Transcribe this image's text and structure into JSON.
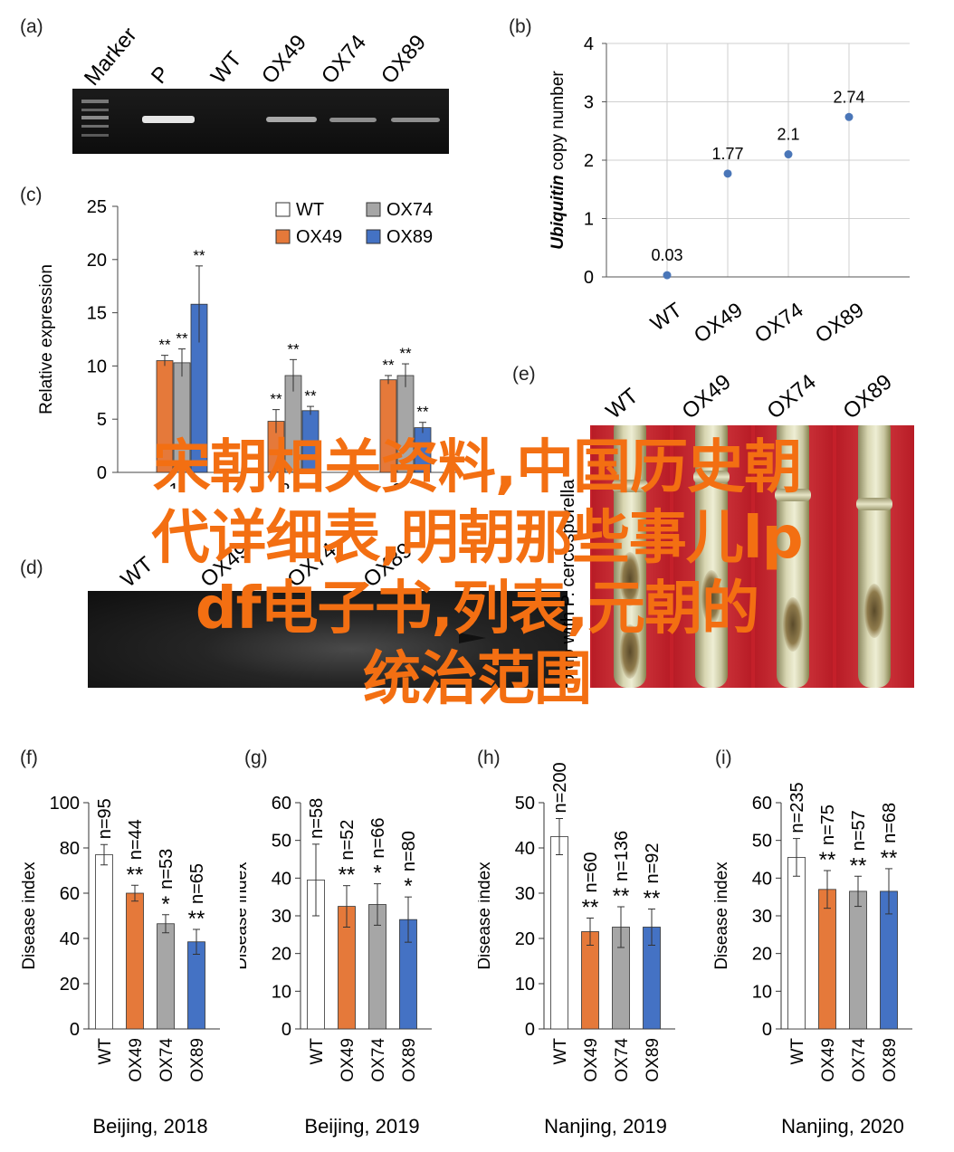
{
  "overlay": {
    "line1": "宋朝相关资料,中国历史朝",
    "line2": "代详细表,明朝那些事儿lp",
    "line3": "df电子书,列表,元朝的",
    "line4": "统治范围"
  },
  "panels": {
    "a": {
      "label": "(a)",
      "lanes": [
        "Marker",
        "P",
        "WT",
        "OX49",
        "OX74",
        "OX89"
      ]
    },
    "b": {
      "label": "(b)"
    },
    "c": {
      "label": "(c)"
    },
    "d": {
      "label": "(d)",
      "lanes": [
        "WT",
        "OX49",
        "OX74",
        "OX89"
      ],
      "side_label": "0 dp with P. cercosporella"
    },
    "e": {
      "label": "(e)",
      "lanes": [
        "WT",
        "OX49",
        "OX74",
        "OX89"
      ]
    },
    "f": {
      "label": "(f)"
    },
    "g": {
      "label": "(g)"
    },
    "h": {
      "label": "(h)"
    },
    "i": {
      "label": "(i)"
    }
  },
  "colors": {
    "WT": "#ffffff",
    "OX49": "#e5793a",
    "OX74": "#a6a6a6",
    "OX89": "#4472c4",
    "point": "#4a76b8"
  },
  "chart_data": [
    {
      "id": "b",
      "type": "scatter",
      "ylabel_italic": "Ubiquitin",
      "ylabel_rest": " copy number",
      "categories": [
        "WT",
        "OX49",
        "OX74",
        "OX89"
      ],
      "values": [
        0.03,
        1.77,
        2.1,
        2.74
      ],
      "data_labels": [
        "0.03",
        "1.77",
        "2.1",
        "2.74"
      ],
      "ylim": [
        0,
        4
      ],
      "yticks": [
        0,
        1,
        2,
        3,
        4
      ],
      "grid": true
    },
    {
      "id": "c",
      "type": "bar",
      "ylabel": "Relative expression",
      "categories": [
        "1",
        "2",
        "3"
      ],
      "ylim": [
        0,
        25
      ],
      "yticks": [
        0,
        5,
        10,
        15,
        20,
        25
      ],
      "legend_position": "top-right",
      "series": [
        {
          "name": "WT",
          "values": [
            0,
            0,
            0
          ],
          "err": [
            0,
            0,
            0
          ],
          "sig": [
            "",
            "",
            ""
          ]
        },
        {
          "name": "OX49",
          "values": [
            10.5,
            4.8,
            8.7
          ],
          "err": [
            0.5,
            1.1,
            0.4
          ],
          "sig": [
            "**",
            "**",
            "**"
          ]
        },
        {
          "name": "OX74",
          "values": [
            10.3,
            9.1,
            9.1
          ],
          "err": [
            1.3,
            1.5,
            1.1
          ],
          "sig": [
            "**",
            "**",
            "**"
          ]
        },
        {
          "name": "OX89",
          "values": [
            15.8,
            5.8,
            4.2
          ],
          "err": [
            3.6,
            0.4,
            0.5
          ],
          "sig": [
            "**",
            "**",
            "**"
          ]
        }
      ]
    },
    {
      "id": "f",
      "type": "bar",
      "ylabel": "Disease index",
      "title": "Beijing, 2018",
      "categories": [
        "WT",
        "OX49",
        "OX74",
        "OX89"
      ],
      "values": [
        77,
        60,
        46.5,
        38.5
      ],
      "err": [
        4.5,
        3.5,
        4,
        5.5
      ],
      "sig": [
        "",
        "**",
        "*",
        "**"
      ],
      "n": [
        "n=95",
        "n=44",
        "n=53",
        "n=65"
      ],
      "ylim": [
        0,
        100
      ],
      "yticks": [
        0,
        20,
        40,
        60,
        80,
        100
      ]
    },
    {
      "id": "g",
      "type": "bar",
      "ylabel": "Disease index",
      "title": "Beijing, 2019",
      "categories": [
        "WT",
        "OX49",
        "OX74",
        "OX89"
      ],
      "values": [
        39.5,
        32.5,
        33,
        29
      ],
      "err": [
        9.5,
        5.5,
        5.5,
        6
      ],
      "sig": [
        "",
        "**",
        "*",
        "*"
      ],
      "n": [
        "n=58",
        "n=52",
        "n=66",
        "n=80"
      ],
      "ylim": [
        0,
        60
      ],
      "yticks": [
        0,
        10,
        20,
        30,
        40,
        50,
        60
      ]
    },
    {
      "id": "h",
      "type": "bar",
      "ylabel": "Disease index",
      "title": "Nanjing, 2019",
      "categories": [
        "WT",
        "OX49",
        "OX74",
        "OX89"
      ],
      "values": [
        42.5,
        21.5,
        22.5,
        22.5
      ],
      "err": [
        4,
        3,
        4.5,
        4
      ],
      "sig": [
        "",
        "**",
        "**",
        "**"
      ],
      "n": [
        "n=200",
        "n=60",
        "n=136",
        "n=92"
      ],
      "ylim": [
        0,
        50
      ],
      "yticks": [
        0,
        10,
        20,
        30,
        40,
        50
      ]
    },
    {
      "id": "i",
      "type": "bar",
      "ylabel": "Disease index",
      "title": "Nanjing, 2020",
      "categories": [
        "WT",
        "OX49",
        "OX74",
        "OX89"
      ],
      "values": [
        45.5,
        37,
        36.5,
        36.5
      ],
      "err": [
        5,
        5,
        4,
        6
      ],
      "sig": [
        "",
        "**",
        "**",
        "**"
      ],
      "n": [
        "n=235",
        "n=75",
        "n=57",
        "n=68"
      ],
      "ylim": [
        0,
        60
      ],
      "yticks": [
        0,
        10,
        20,
        30,
        40,
        50,
        60
      ]
    }
  ]
}
